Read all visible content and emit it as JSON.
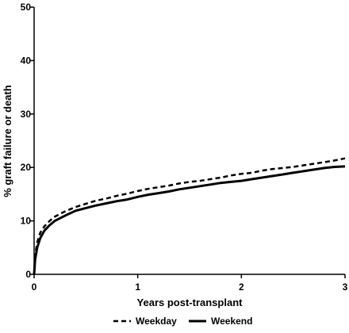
{
  "chart_data": {
    "type": "line",
    "xlabel": "Years post-transplant",
    "ylabel": "% graft failure or death",
    "xlim": [
      0,
      3
    ],
    "ylim": [
      0,
      50
    ],
    "x_ticks": [
      "0",
      "1",
      "2",
      "3"
    ],
    "y_ticks": [
      "0",
      "10",
      "20",
      "30",
      "40",
      "50"
    ],
    "grid": false,
    "legend_position": "bottom",
    "series": [
      {
        "name": "Weekday",
        "style": "dashed",
        "color": "#000000",
        "x": [
          0,
          0.01,
          0.03,
          0.06,
          0.1,
          0.15,
          0.2,
          0.3,
          0.4,
          0.5,
          0.6,
          0.7,
          0.8,
          0.9,
          1.0,
          1.1,
          1.2,
          1.3,
          1.4,
          1.5,
          1.6,
          1.7,
          1.8,
          1.9,
          2.0,
          2.1,
          2.2,
          2.3,
          2.4,
          2.5,
          2.6,
          2.7,
          2.8,
          2.9,
          3.0
        ],
        "y": [
          0,
          3.5,
          6.0,
          7.8,
          9.0,
          10.0,
          10.8,
          11.8,
          12.6,
          13.2,
          13.8,
          14.2,
          14.7,
          15.1,
          15.6,
          16.0,
          16.3,
          16.6,
          17.0,
          17.3,
          17.5,
          17.8,
          18.1,
          18.5,
          18.8,
          19.0,
          19.4,
          19.7,
          19.9,
          20.1,
          20.4,
          20.7,
          21.0,
          21.3,
          21.7
        ]
      },
      {
        "name": "Weekend",
        "style": "solid",
        "color": "#000000",
        "x": [
          0,
          0.01,
          0.03,
          0.06,
          0.1,
          0.15,
          0.2,
          0.3,
          0.4,
          0.5,
          0.6,
          0.7,
          0.8,
          0.9,
          1.0,
          1.1,
          1.2,
          1.3,
          1.4,
          1.5,
          1.6,
          1.7,
          1.8,
          1.9,
          2.0,
          2.1,
          2.2,
          2.3,
          2.4,
          2.5,
          2.6,
          2.7,
          2.8,
          2.9,
          3.0
        ],
        "y": [
          0,
          2.8,
          5.0,
          6.8,
          8.2,
          9.2,
          10.0,
          11.0,
          11.9,
          12.4,
          12.9,
          13.3,
          13.7,
          14.0,
          14.5,
          14.9,
          15.2,
          15.5,
          15.9,
          16.2,
          16.5,
          16.8,
          17.1,
          17.3,
          17.5,
          17.8,
          18.1,
          18.4,
          18.7,
          19.0,
          19.3,
          19.6,
          19.9,
          20.1,
          20.2
        ]
      }
    ]
  }
}
